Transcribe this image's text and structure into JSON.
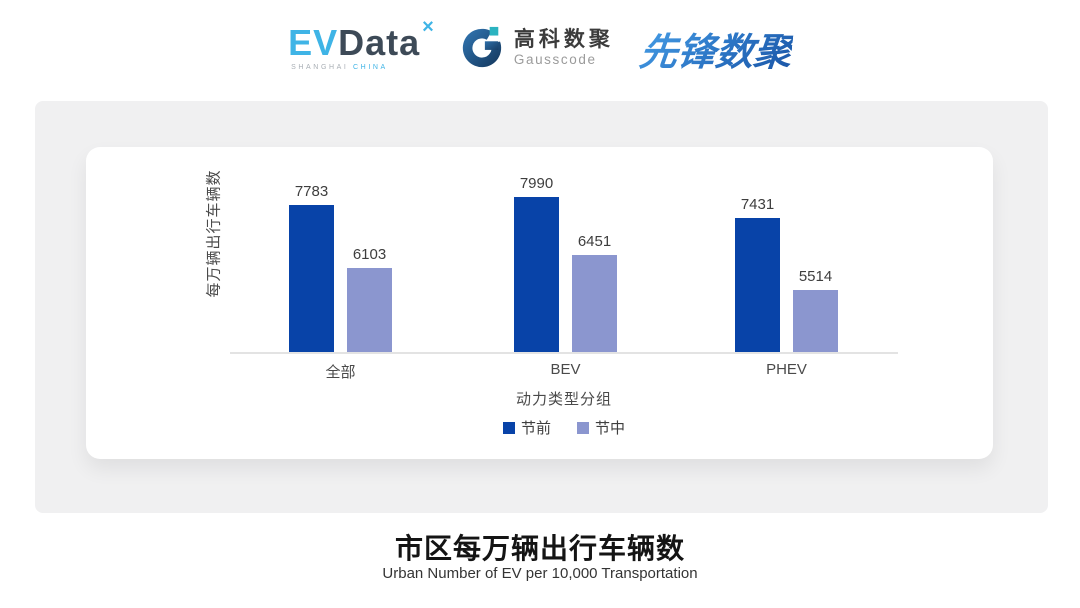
{
  "header": {
    "evdata": {
      "ev": "EV",
      "data": "Data",
      "star": "×",
      "sub_left": "SHANGHAI",
      "sub_right": "CHINA"
    },
    "gausscode": {
      "cn": "高科数聚",
      "en": "Gausscode"
    },
    "xianfeng": {
      "text": "先锋数聚"
    }
  },
  "chart_data": {
    "type": "bar",
    "categories": [
      "全部",
      "BEV",
      "PHEV"
    ],
    "series": [
      {
        "name": "节前",
        "color": "#0843A8",
        "values": [
          7783,
          7990,
          7431
        ]
      },
      {
        "name": "节中",
        "color": "#8B96CF",
        "values": [
          6103,
          6451,
          5514
        ]
      }
    ],
    "title": "",
    "xlabel": "动力类型分组",
    "ylabel": "每万辆出行车辆数",
    "ylim": [
      3870,
      8200
    ],
    "grid": false,
    "legend_position": "bottom",
    "value_labels": true
  },
  "footer": {
    "title": "市区每万辆出行车辆数",
    "subtitle": "Urban Number of EV per 10,000 Transportation"
  },
  "colors": {
    "series_pre": "#0843A8",
    "series_mid": "#8B96CF",
    "panel_bg": "#F0F0F1",
    "axis_line": "#E3E3E3",
    "gauss_mark": "#20527F",
    "gauss_accent": "#2BB3C0"
  }
}
